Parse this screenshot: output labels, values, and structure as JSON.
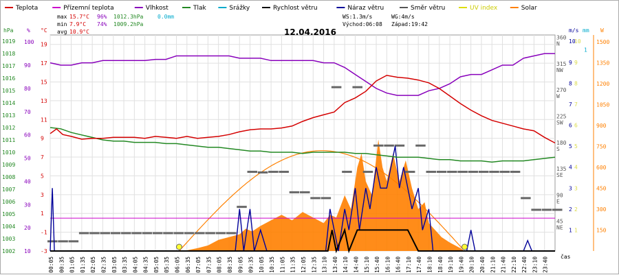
{
  "chart_data": {
    "type": "line",
    "title": "12.04.2016",
    "legend": [
      {
        "label": "Teplota",
        "color": "#d40000"
      },
      {
        "label": "Přízemní teplota",
        "color": "#cc00cc"
      },
      {
        "label": "Vlhkost",
        "color": "#8800bb"
      },
      {
        "label": "Tlak",
        "color": "#228822"
      },
      {
        "label": "Srážky",
        "color": "#00aacc"
      },
      {
        "label": "Rychlost větru",
        "color": "#000000"
      },
      {
        "label": "Náraz větru",
        "color": "#000099"
      },
      {
        "label": "Směr větru",
        "color": "#555555"
      },
      {
        "label": "UV index",
        "color": "#dddd00"
      },
      {
        "label": "Solar",
        "color": "#ff8000"
      }
    ],
    "stats": {
      "max_label": "max",
      "max_temp": "15.7°C",
      "max_hum": "96%",
      "max_press": "1012.3hPa",
      "max_rain": "0.0mm",
      "min_label": "min",
      "min_temp": "7.9°C",
      "min_hum": "74%",
      "min_press": "1009.2hPa",
      "avg_label": "avg",
      "avg_temp": "10.9°C",
      "ws": "WS:1.3m/s",
      "wg": "WG:4m/s",
      "sunrise": "Východ:06:08",
      "sunset": "Západ:19:42"
    },
    "axes": {
      "hpa": {
        "unit": "hPa",
        "ticks": [
          1002,
          1003,
          1004,
          1005,
          1006,
          1007,
          1008,
          1009,
          1010,
          1011,
          1012,
          1013,
          1014,
          1015,
          1016,
          1017,
          1018,
          1019
        ]
      },
      "pct": {
        "unit": "%",
        "ticks": [
          10,
          20,
          30,
          40,
          50,
          60,
          70,
          80,
          90,
          100
        ]
      },
      "temp": {
        "unit": "°C",
        "ticks": [
          -3,
          -1,
          1,
          3,
          5,
          7,
          9,
          11,
          13,
          15,
          17,
          19
        ]
      },
      "dir": {
        "ticks": [
          {
            "v": 45,
            "l": "NE"
          },
          {
            "v": 90,
            "l": "E"
          },
          {
            "v": 135,
            "l": "SE"
          },
          {
            "v": 180,
            "l": "S"
          },
          {
            "v": 225,
            "l": "SW"
          },
          {
            "v": 270,
            "l": "W"
          },
          {
            "v": 315,
            "l": "NW"
          },
          {
            "v": 360,
            "l": "N"
          }
        ]
      },
      "ms": {
        "unit": "m/s",
        "ticks": [
          1,
          2,
          3,
          4,
          5,
          6,
          7,
          8,
          9,
          10
        ]
      },
      "mm": {
        "unit": "mm",
        "ticks": [
          1
        ]
      },
      "w": {
        "unit": "W",
        "ticks": [
          150,
          300,
          450,
          600,
          750,
          900,
          1050,
          1200,
          1350,
          1500
        ]
      },
      "uv": {
        "ticks": [
          1,
          2,
          3,
          4,
          5,
          6,
          7,
          8,
          9,
          10
        ]
      },
      "time_labels": [
        "00:05",
        "00:35",
        "01:05",
        "01:35",
        "02:05",
        "02:35",
        "03:05",
        "03:35",
        "04:05",
        "04:35",
        "05:05",
        "05:35",
        "06:05",
        "06:35",
        "07:05",
        "07:35",
        "08:05",
        "08:35",
        "09:05",
        "09:35",
        "10:05",
        "10:35",
        "11:05",
        "11:35",
        "12:05",
        "12:35",
        "13:10",
        "13:40",
        "14:10",
        "14:40",
        "15:10",
        "15:40",
        "16:10",
        "16:40",
        "17:10",
        "17:40",
        "18:10",
        "18:40",
        "19:10",
        "19:40",
        "20:10",
        "20:40",
        "21:10",
        "21:40",
        "22:10",
        "22:40",
        "23:10",
        "23:40"
      ],
      "time_unit": "čas"
    },
    "humidity_pct": [
      [
        0,
        91
      ],
      [
        0.5,
        90
      ],
      [
        1,
        90
      ],
      [
        1.5,
        91
      ],
      [
        2,
        91
      ],
      [
        2.5,
        92
      ],
      [
        3,
        92
      ],
      [
        3.5,
        92
      ],
      [
        4,
        92
      ],
      [
        4.5,
        92
      ],
      [
        5,
        92.5
      ],
      [
        5.5,
        92.5
      ],
      [
        6,
        94
      ],
      [
        6.5,
        94
      ],
      [
        7,
        94
      ],
      [
        7.5,
        94
      ],
      [
        8,
        94
      ],
      [
        8.5,
        94
      ],
      [
        9,
        93
      ],
      [
        9.5,
        93
      ],
      [
        10,
        93
      ],
      [
        10.5,
        92
      ],
      [
        11,
        92
      ],
      [
        11.5,
        92
      ],
      [
        12,
        92
      ],
      [
        12.5,
        92
      ],
      [
        13,
        91
      ],
      [
        13.5,
        91
      ],
      [
        14,
        89
      ],
      [
        14.5,
        86
      ],
      [
        15,
        83
      ],
      [
        15.5,
        80
      ],
      [
        16,
        78
      ],
      [
        16.5,
        77
      ],
      [
        17,
        77
      ],
      [
        17.5,
        77
      ],
      [
        18,
        79
      ],
      [
        18.5,
        80
      ],
      [
        19,
        82
      ],
      [
        19.5,
        85
      ],
      [
        20,
        86
      ],
      [
        20.5,
        86
      ],
      [
        21,
        88
      ],
      [
        21.5,
        90
      ],
      [
        22,
        90
      ],
      [
        22.5,
        93
      ],
      [
        23,
        94
      ],
      [
        23.5,
        95
      ],
      [
        24,
        95
      ]
    ],
    "temperature_c": [
      [
        0,
        9.5
      ],
      [
        0.3,
        10
      ],
      [
        0.6,
        9.4
      ],
      [
        1,
        9.2
      ],
      [
        1.5,
        8.9
      ],
      [
        2,
        9
      ],
      [
        2.5,
        9
      ],
      [
        3,
        9.1
      ],
      [
        3.5,
        9.1
      ],
      [
        4,
        9.1
      ],
      [
        4.5,
        9
      ],
      [
        5,
        9.2
      ],
      [
        5.5,
        9.1
      ],
      [
        6,
        9
      ],
      [
        6.5,
        9.2
      ],
      [
        7,
        9
      ],
      [
        7.5,
        9.1
      ],
      [
        8,
        9.2
      ],
      [
        8.5,
        9.4
      ],
      [
        9,
        9.7
      ],
      [
        9.5,
        9.9
      ],
      [
        10,
        10
      ],
      [
        10.5,
        10
      ],
      [
        11,
        10.1
      ],
      [
        11.5,
        10.3
      ],
      [
        12,
        10.8
      ],
      [
        12.5,
        11.2
      ],
      [
        13,
        11.5
      ],
      [
        13.5,
        11.8
      ],
      [
        14,
        12.8
      ],
      [
        14.5,
        13.3
      ],
      [
        15,
        14
      ],
      [
        15.5,
        15.1
      ],
      [
        16,
        15.7
      ],
      [
        16.5,
        15.5
      ],
      [
        17,
        15.4
      ],
      [
        17.5,
        15.2
      ],
      [
        18,
        14.9
      ],
      [
        18.5,
        14.3
      ],
      [
        19,
        13.5
      ],
      [
        19.5,
        12.7
      ],
      [
        20,
        12
      ],
      [
        20.5,
        11.4
      ],
      [
        21,
        10.9
      ],
      [
        21.5,
        10.6
      ],
      [
        22,
        10.3
      ],
      [
        22.5,
        10
      ],
      [
        23,
        9.8
      ],
      [
        23.5,
        9.1
      ],
      [
        24,
        8.5
      ]
    ],
    "pressure_hpa": [
      [
        0,
        1012
      ],
      [
        0.5,
        1011.9
      ],
      [
        1,
        1011.6
      ],
      [
        1.5,
        1011.4
      ],
      [
        2,
        1011.2
      ],
      [
        2.5,
        1011.0
      ],
      [
        3,
        1010.9
      ],
      [
        3.5,
        1010.9
      ],
      [
        4,
        1010.8
      ],
      [
        4.5,
        1010.8
      ],
      [
        5,
        1010.8
      ],
      [
        5.5,
        1010.7
      ],
      [
        6,
        1010.7
      ],
      [
        6.5,
        1010.6
      ],
      [
        7,
        1010.5
      ],
      [
        7.5,
        1010.4
      ],
      [
        8,
        1010.4
      ],
      [
        8.5,
        1010.3
      ],
      [
        9,
        1010.2
      ],
      [
        9.5,
        1010.1
      ],
      [
        10,
        1010.1
      ],
      [
        10.5,
        1010.0
      ],
      [
        11,
        1010.0
      ],
      [
        11.5,
        1010.0
      ],
      [
        12,
        1009.9
      ],
      [
        12.5,
        1010.0
      ],
      [
        13,
        1010.0
      ],
      [
        13.5,
        1010.0
      ],
      [
        14,
        1010.0
      ],
      [
        14.5,
        1009.9
      ],
      [
        15,
        1009.9
      ],
      [
        15.5,
        1009.8
      ],
      [
        16,
        1009.7
      ],
      [
        16.5,
        1009.6
      ],
      [
        17,
        1009.6
      ],
      [
        17.5,
        1009.6
      ],
      [
        18,
        1009.5
      ],
      [
        18.5,
        1009.4
      ],
      [
        19,
        1009.4
      ],
      [
        19.5,
        1009.3
      ],
      [
        20,
        1009.3
      ],
      [
        20.5,
        1009.3
      ],
      [
        21,
        1009.2
      ],
      [
        21.5,
        1009.3
      ],
      [
        22,
        1009.3
      ],
      [
        22.5,
        1009.3
      ],
      [
        23,
        1009.4
      ],
      [
        23.5,
        1009.5
      ],
      [
        24,
        1009.6
      ]
    ],
    "solar_w": [
      [
        0,
        0
      ],
      [
        6.1,
        0
      ],
      [
        6.5,
        5
      ],
      [
        7,
        20
      ],
      [
        7.5,
        40
      ],
      [
        8,
        80
      ],
      [
        8.5,
        100
      ],
      [
        9,
        120
      ],
      [
        9.3,
        160
      ],
      [
        9.6,
        140
      ],
      [
        10,
        180
      ],
      [
        10.5,
        220
      ],
      [
        11,
        260
      ],
      [
        11.5,
        220
      ],
      [
        12,
        280
      ],
      [
        12.5,
        240
      ],
      [
        13,
        200
      ],
      [
        13.3,
        260
      ],
      [
        13.6,
        240
      ],
      [
        14,
        400
      ],
      [
        14.3,
        300
      ],
      [
        14.6,
        600
      ],
      [
        14.8,
        700
      ],
      [
        15,
        500
      ],
      [
        15.3,
        400
      ],
      [
        15.6,
        800
      ],
      [
        15.8,
        600
      ],
      [
        16,
        500
      ],
      [
        16.3,
        700
      ],
      [
        16.6,
        500
      ],
      [
        16.9,
        650
      ],
      [
        17.2,
        450
      ],
      [
        17.5,
        300
      ],
      [
        17.8,
        350
      ],
      [
        18,
        200
      ],
      [
        18.3,
        150
      ],
      [
        18.6,
        100
      ],
      [
        19,
        60
      ],
      [
        19.5,
        20
      ],
      [
        19.7,
        0
      ],
      [
        24,
        0
      ]
    ],
    "wind_gust_ms": [
      [
        0,
        0
      ],
      [
        0.1,
        3
      ],
      [
        0.2,
        0
      ],
      [
        6.5,
        0
      ],
      [
        7,
        0
      ],
      [
        8.8,
        0
      ],
      [
        9,
        2
      ],
      [
        9.2,
        0
      ],
      [
        9.5,
        2
      ],
      [
        9.7,
        0
      ],
      [
        10,
        1
      ],
      [
        10.3,
        0
      ],
      [
        13.1,
        0
      ],
      [
        13.3,
        2
      ],
      [
        13.5,
        1
      ],
      [
        13.7,
        0
      ],
      [
        14,
        2
      ],
      [
        14.2,
        1
      ],
      [
        14.5,
        3
      ],
      [
        14.7,
        1
      ],
      [
        15,
        3
      ],
      [
        15.2,
        2
      ],
      [
        15.5,
        4
      ],
      [
        15.7,
        3
      ],
      [
        16,
        3
      ],
      [
        16.2,
        4
      ],
      [
        16.4,
        5
      ],
      [
        16.6,
        3
      ],
      [
        16.8,
        4
      ],
      [
        17,
        3
      ],
      [
        17.2,
        2
      ],
      [
        17.5,
        3
      ],
      [
        17.7,
        1
      ],
      [
        18,
        2
      ],
      [
        18.2,
        0
      ],
      [
        19.8,
        0
      ],
      [
        20,
        1
      ],
      [
        20.2,
        0
      ],
      [
        22.5,
        0
      ],
      [
        22.7,
        0.5
      ],
      [
        22.9,
        0
      ],
      [
        24,
        0
      ]
    ],
    "wind_speed_ms": [
      [
        0,
        0
      ],
      [
        13.2,
        0
      ],
      [
        13.4,
        1
      ],
      [
        13.6,
        0
      ],
      [
        14,
        1
      ],
      [
        14.2,
        0
      ],
      [
        14.6,
        1
      ],
      [
        15,
        1
      ],
      [
        15.5,
        1
      ],
      [
        16,
        1
      ],
      [
        16.5,
        1
      ],
      [
        17,
        1
      ],
      [
        17.5,
        0
      ],
      [
        24,
        0
      ]
    ],
    "wind_dir_deg": [
      [
        0,
        16
      ],
      [
        0.5,
        16
      ],
      [
        1,
        16
      ],
      [
        1.5,
        30
      ],
      [
        2,
        30
      ],
      [
        2.5,
        30
      ],
      [
        3,
        30
      ],
      [
        3.5,
        30
      ],
      [
        4,
        30
      ],
      [
        4.5,
        30
      ],
      [
        5,
        30
      ],
      [
        5.5,
        30
      ],
      [
        6,
        30
      ],
      [
        6.5,
        30
      ],
      [
        7,
        30
      ],
      [
        7.5,
        30
      ],
      [
        8,
        30
      ],
      [
        8.5,
        30
      ],
      [
        9,
        75
      ],
      [
        9.5,
        135
      ],
      [
        10,
        134
      ],
      [
        10.5,
        135
      ],
      [
        11,
        135
      ],
      [
        11.5,
        100
      ],
      [
        12,
        100
      ],
      [
        12.5,
        90
      ],
      [
        13,
        90
      ],
      [
        13.5,
        280
      ],
      [
        14,
        135
      ],
      [
        14.5,
        280
      ],
      [
        15,
        135
      ],
      [
        15.5,
        180
      ],
      [
        16,
        180
      ],
      [
        16.5,
        180
      ],
      [
        17,
        135
      ],
      [
        17.5,
        180
      ],
      [
        18,
        135
      ],
      [
        18.5,
        135
      ],
      [
        19,
        135
      ],
      [
        19.5,
        135
      ],
      [
        20,
        135
      ],
      [
        20.5,
        135
      ],
      [
        21,
        135
      ],
      [
        21.5,
        135
      ],
      [
        22,
        135
      ],
      [
        22.5,
        90
      ],
      [
        23,
        70
      ],
      [
        23.5,
        70
      ],
      [
        24,
        70
      ]
    ],
    "uv_points": [
      {
        "hour": 6.13,
        "value": 0
      },
      {
        "hour": 19.7,
        "value": 0
      }
    ],
    "ranges": {
      "hpa": [
        1002,
        1019.5
      ],
      "pct": [
        10,
        103
      ],
      "temp": [
        -3,
        20
      ],
      "dir": [
        0,
        370
      ],
      "ms": [
        0,
        10.3
      ],
      "w": [
        0,
        1550
      ],
      "hours": [
        0,
        24
      ]
    }
  }
}
